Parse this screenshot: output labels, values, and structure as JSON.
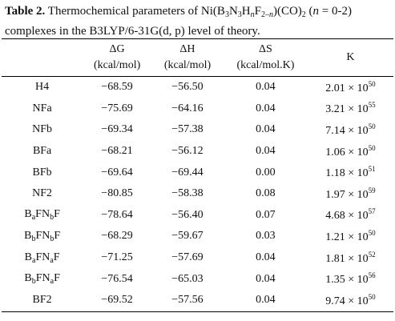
{
  "caption": {
    "parts": [
      {
        "text": "Table 2.",
        "style": "bold"
      },
      {
        "text": " Thermochemical parameters of Ni(B",
        "style": "normal"
      },
      {
        "text": "3",
        "style": "sub"
      },
      {
        "text": "N",
        "style": "normal"
      },
      {
        "text": "3",
        "style": "sub"
      },
      {
        "text": "H",
        "style": "normal"
      },
      {
        "text": "n",
        "style": "italic-sub"
      },
      {
        "text": "F",
        "style": "normal"
      },
      {
        "text": "2–",
        "style": "sub"
      },
      {
        "text": "n",
        "style": "italic-sub"
      },
      {
        "text": ")(CO)",
        "style": "normal"
      },
      {
        "text": "2",
        "style": "sub"
      },
      {
        "text": " (",
        "style": "normal"
      },
      {
        "text": "n",
        "style": "italic"
      },
      {
        "text": " = 0-2) complexes in the B3LYP/6-31G(d, p) level of theory.",
        "style": "normal"
      }
    ]
  },
  "table": {
    "columns": [
      {
        "lines": [
          "ΔG",
          "(kcal/mol)"
        ]
      },
      {
        "lines": [
          "ΔH",
          "(kcal/mol)"
        ]
      },
      {
        "lines": [
          "ΔS",
          "(kcal/mol.K)"
        ]
      },
      {
        "lines": [
          "K"
        ]
      }
    ],
    "rows": [
      {
        "label": [
          {
            "text": "H4",
            "style": "normal"
          }
        ],
        "dG": "−68.59",
        "dH": "−56.50",
        "dS": "0.04",
        "K": {
          "mantissa": "2.01 × 10",
          "exponent": "50"
        }
      },
      {
        "label": [
          {
            "text": "NFa",
            "style": "normal"
          }
        ],
        "dG": "−75.69",
        "dH": "−64.16",
        "dS": "0.04",
        "K": {
          "mantissa": "3.21 × 10",
          "exponent": "55"
        }
      },
      {
        "label": [
          {
            "text": "NFb",
            "style": "normal"
          }
        ],
        "dG": "−69.34",
        "dH": "−57.38",
        "dS": "0.04",
        "K": {
          "mantissa": "7.14 × 10",
          "exponent": "50"
        }
      },
      {
        "label": [
          {
            "text": "BFa",
            "style": "normal"
          }
        ],
        "dG": "−68.21",
        "dH": "−56.12",
        "dS": "0.04",
        "K": {
          "mantissa": "1.06 × 10",
          "exponent": "50"
        }
      },
      {
        "label": [
          {
            "text": "BFb",
            "style": "normal"
          }
        ],
        "dG": "−69.64",
        "dH": "−69.44",
        "dS": "0.00",
        "K": {
          "mantissa": "1.18 × 10",
          "exponent": "51"
        }
      },
      {
        "label": [
          {
            "text": "NF2",
            "style": "normal"
          }
        ],
        "dG": "−80.85",
        "dH": "−58.38",
        "dS": "0.08",
        "K": {
          "mantissa": "1.97 × 10",
          "exponent": "59"
        }
      },
      {
        "label": [
          {
            "text": "B",
            "style": "normal"
          },
          {
            "text": "a",
            "style": "sub"
          },
          {
            "text": "FN",
            "style": "normal"
          },
          {
            "text": "b",
            "style": "sub"
          },
          {
            "text": "F",
            "style": "normal"
          }
        ],
        "dG": "−78.64",
        "dH": "−56.40",
        "dS": "0.07",
        "K": {
          "mantissa": "4.68 × 10",
          "exponent": "57"
        }
      },
      {
        "label": [
          {
            "text": "B",
            "style": "normal"
          },
          {
            "text": "b",
            "style": "sub"
          },
          {
            "text": "FN",
            "style": "normal"
          },
          {
            "text": "b",
            "style": "sub"
          },
          {
            "text": "F",
            "style": "normal"
          }
        ],
        "dG": "−68.29",
        "dH": "−59.67",
        "dS": "0.03",
        "K": {
          "mantissa": "1.21 × 10",
          "exponent": "50"
        }
      },
      {
        "label": [
          {
            "text": "B",
            "style": "normal"
          },
          {
            "text": "a",
            "style": "sub"
          },
          {
            "text": "FN",
            "style": "normal"
          },
          {
            "text": "a",
            "style": "sub"
          },
          {
            "text": "F",
            "style": "normal"
          }
        ],
        "dG": "−71.25",
        "dH": "−57.69",
        "dS": "0.04",
        "K": {
          "mantissa": "1.81 × 10",
          "exponent": "52"
        }
      },
      {
        "label": [
          {
            "text": "B",
            "style": "normal"
          },
          {
            "text": "b",
            "style": "sub"
          },
          {
            "text": "FN",
            "style": "normal"
          },
          {
            "text": "a",
            "style": "sub"
          },
          {
            "text": "F",
            "style": "normal"
          }
        ],
        "dG": "−76.54",
        "dH": "−65.03",
        "dS": "0.04",
        "K": {
          "mantissa": "1.35 × 10",
          "exponent": "56"
        }
      },
      {
        "label": [
          {
            "text": "BF2",
            "style": "normal"
          }
        ],
        "dG": "−69.52",
        "dH": "−57.56",
        "dS": "0.04",
        "K": {
          "mantissa": "9.74 × 10",
          "exponent": "50"
        }
      }
    ]
  }
}
